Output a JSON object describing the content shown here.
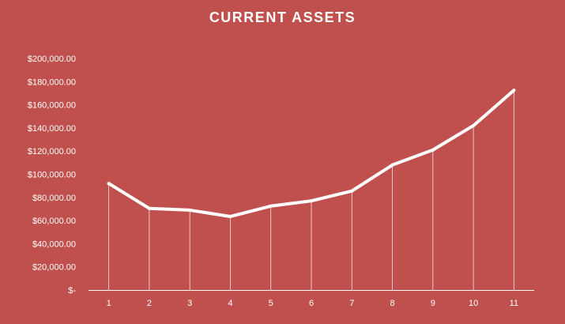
{
  "chart_data": {
    "type": "line",
    "title": "CURRENT ASSETS",
    "categories": [
      "1",
      "2",
      "3",
      "4",
      "5",
      "6",
      "7",
      "8",
      "9",
      "10",
      "11"
    ],
    "values": [
      92000,
      70500,
      69000,
      63500,
      72500,
      77000,
      85500,
      108000,
      121000,
      142000,
      172500
    ],
    "ylim": [
      0,
      200000
    ],
    "y_tick_labels": [
      "$-",
      "$20,000.00",
      "$40,000.00",
      "$60,000.00",
      "$80,000.00",
      "$100,000.00",
      "$120,000.00",
      "$140,000.00",
      "$160,000.00",
      "$180,000.00",
      "$200,000.00"
    ],
    "xlabel": "",
    "ylabel": "",
    "grid": false,
    "drop_lines": true,
    "legend": "none"
  },
  "colors": {
    "background": "#c0504d",
    "line": "#ffffff",
    "text": "#ffffff"
  }
}
